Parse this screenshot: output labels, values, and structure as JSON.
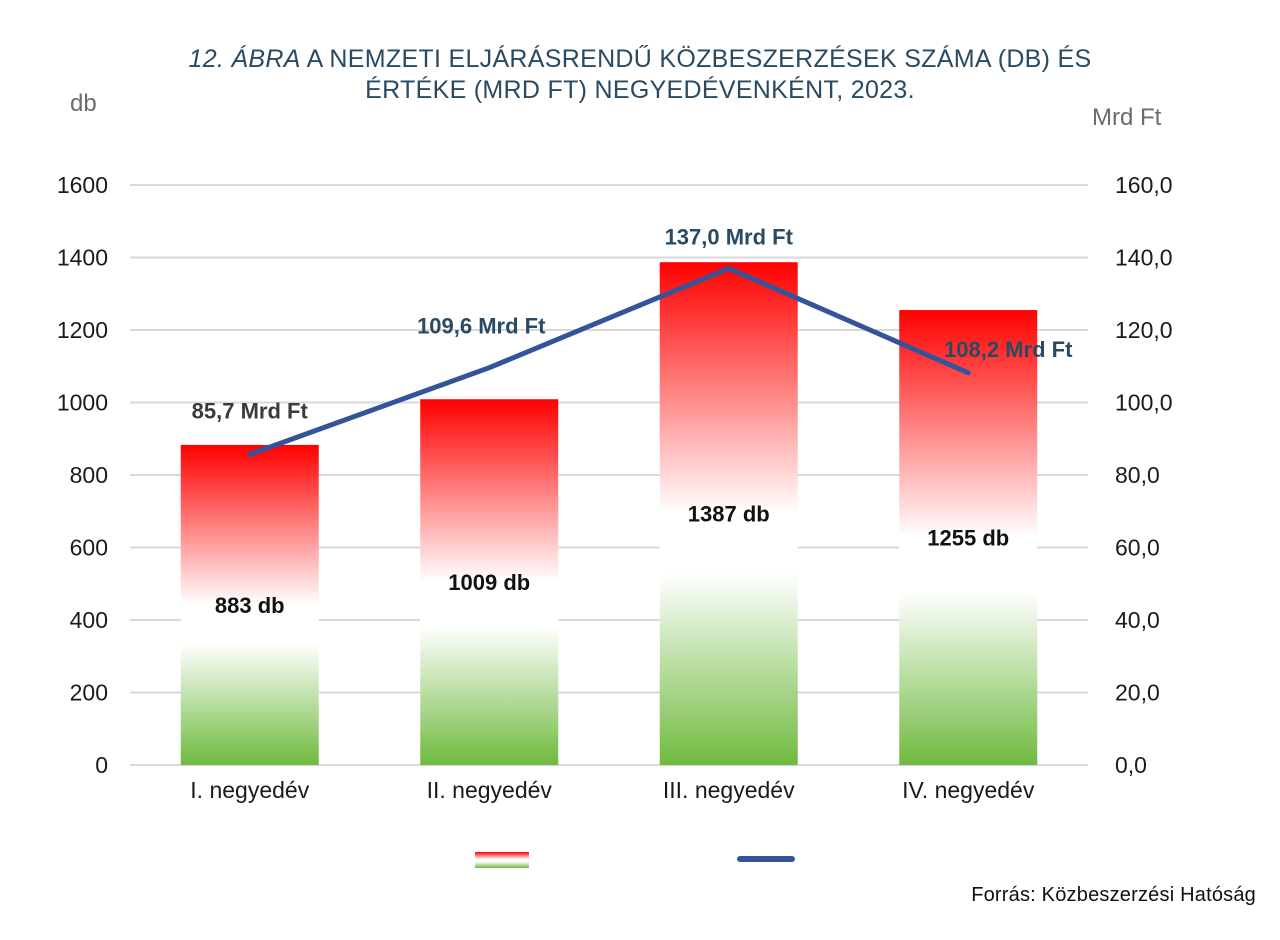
{
  "title": {
    "prefix": "12. ÁBRA",
    "line1_rest": "A NEMZETI ELJÁRÁSRENDŰ KÖZBESZERZÉSEK SZÁMA (DB) ÉS",
    "line2": "ÉRTÉKE (MRD FT)  NEGYEDÉVENKÉNT, 2023."
  },
  "source": "Forrás: Közbeszerzési Hatóság",
  "colors": {
    "bar_top": "#ff0000",
    "bar_mid": "#ffffff",
    "bar_bottom": "#6fba3e",
    "line": "#34549a",
    "grid": "#d9d9d9",
    "title": "#2a4a63"
  },
  "chart_data": {
    "type": "bar",
    "categories": [
      "I. negyedév",
      "II. negyedév",
      "III. negyedév",
      "IV. negyedév"
    ],
    "series": [
      {
        "name": "db",
        "type": "bar",
        "axis": "left",
        "values": [
          883,
          1009,
          1387,
          1255
        ],
        "labels": [
          "883 db",
          "1009 db",
          "1387 db",
          "1255 db"
        ]
      },
      {
        "name": "Mrd Ft",
        "type": "line",
        "axis": "right",
        "values": [
          85.7,
          109.6,
          137.0,
          108.2
        ],
        "labels": [
          "85,7 Mrd Ft",
          "109,6 Mrd Ft",
          "137,0 Mrd Ft",
          "108,2 Mrd Ft"
        ]
      }
    ],
    "ylabel": "db",
    "y2label": "Mrd Ft",
    "ylim": [
      0,
      1600
    ],
    "y2lim": [
      0,
      160
    ],
    "yticks": [
      "0",
      "200",
      "400",
      "600",
      "800",
      "1000",
      "1200",
      "1400",
      "1600"
    ],
    "y2ticks": [
      "0,0",
      "20,0",
      "40,0",
      "60,0",
      "80,0",
      "100,0",
      "120,0",
      "140,0",
      "160,0"
    ],
    "grid": true,
    "legend": "bottom-center"
  }
}
